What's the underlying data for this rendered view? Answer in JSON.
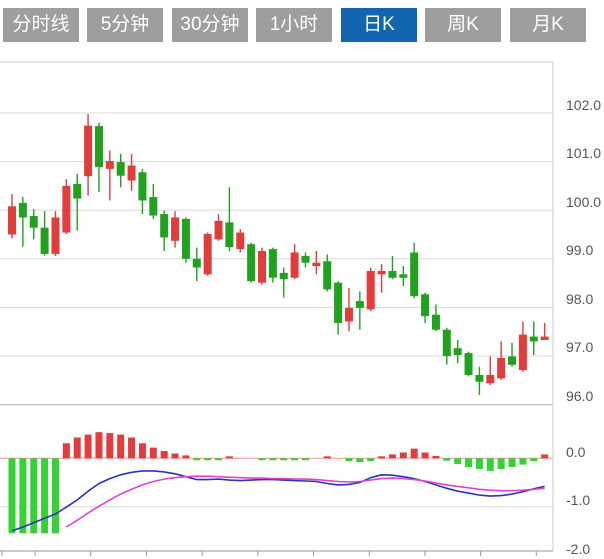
{
  "tabs": {
    "items": [
      {
        "label": "分时线",
        "active": false
      },
      {
        "label": "5分钟",
        "active": false
      },
      {
        "label": "30分钟",
        "active": false
      },
      {
        "label": "1小时",
        "active": false
      },
      {
        "label": "日K",
        "active": true
      },
      {
        "label": "周K",
        "active": false
      },
      {
        "label": "月K",
        "active": false
      }
    ]
  },
  "colors": {
    "tab_gray": "#9e9e9e",
    "tab_active_blue": "#1266af",
    "candle_up_red": "#e23c3c",
    "candle_down_green": "#21a21f",
    "macd_bar_up_red": "#e23c3c",
    "macd_bar_down_green": "#35d235",
    "dif_line_blue": "#2a35b8",
    "dea_line_magenta": "#df43ce",
    "zero_line_pink": "#ee9393",
    "grid_line": "#d9d9d9",
    "grid_line_dark": "#b5b5b5",
    "axis_line": "#999999",
    "label_text": "#555555"
  },
  "chart_data": {
    "type": "candlestick",
    "title": "",
    "legend": [],
    "grid": true,
    "y_axis_main": [
      "102.0",
      "101.0",
      "100.0",
      "99.0",
      "98.0",
      "97.0",
      "96.0"
    ],
    "y_axis_main_values": [
      102,
      101,
      100,
      99,
      98,
      97,
      96
    ],
    "y_axis_macd": [
      "0.0",
      "-1.0",
      "-2.0"
    ],
    "y_axis_macd_values": [
      0,
      -1,
      -2
    ],
    "main_ylim": [
      95.7,
      103.0
    ],
    "macd_ylim": [
      -2.0,
      0.6
    ],
    "candles_ohlc": [
      [
        99.5,
        100.33,
        99.42,
        100.08
      ],
      [
        100.15,
        100.27,
        99.25,
        99.85
      ],
      [
        99.88,
        100.02,
        99.4,
        99.64
      ],
      [
        99.64,
        99.98,
        99.06,
        99.1
      ],
      [
        99.1,
        99.98,
        99.06,
        99.85
      ],
      [
        99.54,
        100.64,
        99.51,
        100.5
      ],
      [
        100.54,
        100.75,
        99.58,
        100.24
      ],
      [
        100.7,
        101.98,
        100.3,
        101.74
      ],
      [
        101.73,
        101.8,
        100.37,
        100.89
      ],
      [
        100.85,
        101.23,
        100.2,
        101.01
      ],
      [
        100.99,
        101.16,
        100.47,
        100.71
      ],
      [
        100.61,
        101.16,
        100.4,
        100.92
      ],
      [
        100.78,
        100.85,
        99.92,
        100.2
      ],
      [
        100.27,
        100.54,
        99.82,
        99.89
      ],
      [
        99.92,
        99.99,
        99.16,
        99.44
      ],
      [
        99.37,
        99.98,
        99.23,
        99.85
      ],
      [
        99.82,
        99.85,
        98.92,
        99.0
      ],
      [
        99.0,
        99.23,
        98.54,
        98.82
      ],
      [
        98.68,
        99.54,
        98.65,
        99.51
      ],
      [
        99.4,
        99.92,
        99.37,
        99.78
      ],
      [
        99.75,
        100.47,
        99.16,
        99.24
      ],
      [
        99.2,
        99.61,
        99.13,
        99.54
      ],
      [
        99.3,
        99.33,
        98.51,
        98.54
      ],
      [
        98.51,
        99.23,
        98.47,
        99.16
      ],
      [
        99.2,
        99.23,
        98.51,
        98.61
      ],
      [
        98.71,
        98.82,
        98.2,
        98.58
      ],
      [
        98.61,
        99.3,
        98.58,
        99.13
      ],
      [
        99.06,
        99.13,
        98.82,
        98.92
      ],
      [
        98.85,
        99.16,
        98.68,
        98.92
      ],
      [
        98.95,
        99.09,
        98.33,
        98.37
      ],
      [
        98.51,
        98.54,
        97.44,
        97.68
      ],
      [
        97.71,
        98.4,
        97.51,
        97.99
      ],
      [
        98.13,
        98.33,
        97.54,
        97.99
      ],
      [
        97.96,
        98.82,
        97.92,
        98.75
      ],
      [
        98.68,
        98.89,
        98.3,
        98.75
      ],
      [
        98.75,
        99.06,
        98.58,
        98.61
      ],
      [
        98.68,
        98.85,
        98.44,
        98.61
      ],
      [
        99.13,
        99.33,
        98.19,
        98.23
      ],
      [
        98.27,
        98.3,
        97.68,
        97.82
      ],
      [
        97.85,
        98.06,
        97.51,
        97.54
      ],
      [
        97.54,
        97.58,
        96.82,
        97.0
      ],
      [
        97.16,
        97.33,
        96.85,
        97.02
      ],
      [
        97.06,
        97.09,
        96.58,
        96.61
      ],
      [
        96.61,
        96.78,
        96.2,
        96.47
      ],
      [
        96.44,
        96.99,
        96.4,
        96.61
      ],
      [
        96.54,
        97.3,
        96.51,
        96.96
      ],
      [
        96.99,
        97.27,
        96.78,
        96.82
      ],
      [
        96.71,
        97.71,
        96.68,
        97.44
      ],
      [
        97.4,
        97.71,
        97.02,
        97.3
      ],
      [
        97.33,
        97.68,
        97.33,
        97.4
      ]
    ],
    "macd": {
      "histogram": [
        -1.55,
        -1.55,
        -1.55,
        -1.55,
        -1.55,
        0.31,
        0.43,
        0.49,
        0.54,
        0.52,
        0.49,
        0.43,
        0.31,
        0.22,
        0.15,
        0.1,
        0.06,
        -0.04,
        -0.04,
        -0.04,
        0.04,
        0.01,
        -0.01,
        -0.04,
        -0.04,
        -0.04,
        -0.04,
        -0.04,
        -0.01,
        0.04,
        -0.01,
        -0.06,
        -0.08,
        -0.06,
        0.04,
        0.08,
        0.12,
        0.2,
        0.12,
        0.05,
        -0.05,
        -0.12,
        -0.18,
        -0.22,
        -0.26,
        -0.22,
        -0.18,
        -0.13,
        -0.06,
        0.08
      ],
      "dif": [
        -1.5,
        -1.42,
        -1.33,
        -1.24,
        -1.15,
        -1.01,
        -0.86,
        -0.68,
        -0.52,
        -0.42,
        -0.34,
        -0.29,
        -0.26,
        -0.26,
        -0.28,
        -0.32,
        -0.38,
        -0.44,
        -0.44,
        -0.43,
        -0.45,
        -0.46,
        -0.45,
        -0.44,
        -0.44,
        -0.45,
        -0.46,
        -0.47,
        -0.48,
        -0.52,
        -0.55,
        -0.54,
        -0.5,
        -0.4,
        -0.34,
        -0.35,
        -0.38,
        -0.42,
        -0.48,
        -0.55,
        -0.62,
        -0.68,
        -0.72,
        -0.76,
        -0.78,
        -0.77,
        -0.74,
        -0.69,
        -0.63,
        -0.58
      ],
      "dea_start_index": 5,
      "dea": [
        -1.42,
        -1.28,
        -1.13,
        -0.99,
        -0.86,
        -0.74,
        -0.64,
        -0.55,
        -0.48,
        -0.43,
        -0.4,
        -0.38,
        -0.37,
        -0.37,
        -0.38,
        -0.39,
        -0.4,
        -0.41,
        -0.41,
        -0.42,
        -0.42,
        -0.43,
        -0.43,
        -0.44,
        -0.46,
        -0.48,
        -0.49,
        -0.48,
        -0.45,
        -0.42,
        -0.41,
        -0.42,
        -0.44,
        -0.47,
        -0.51,
        -0.55,
        -0.58,
        -0.61,
        -0.64,
        -0.66,
        -0.67,
        -0.67,
        -0.66,
        -0.64,
        -0.62
      ]
    }
  }
}
